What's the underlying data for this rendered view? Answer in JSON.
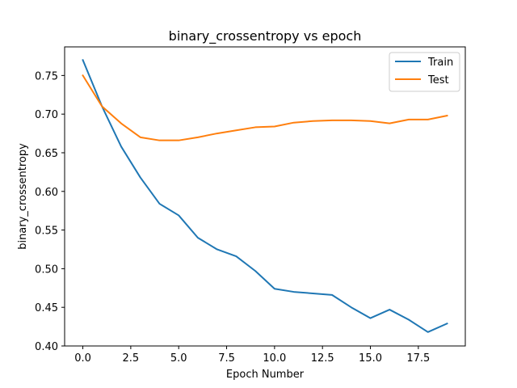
{
  "chart_data": {
    "type": "line",
    "title": "binary_crossentropy vs epoch",
    "xlabel": "Epoch Number",
    "ylabel": "binary_crossentropy",
    "xlim": [
      -0.95,
      19.95
    ],
    "ylim": [
      0.4,
      0.787
    ],
    "xticks": [
      0.0,
      2.5,
      5.0,
      7.5,
      10.0,
      12.5,
      15.0,
      17.5
    ],
    "xtick_labels": [
      "0.0",
      "2.5",
      "5.0",
      "7.5",
      "10.0",
      "12.5",
      "15.0",
      "17.5"
    ],
    "yticks": [
      0.4,
      0.45,
      0.5,
      0.55,
      0.6,
      0.65,
      0.7,
      0.75
    ],
    "ytick_labels": [
      "0.40",
      "0.45",
      "0.50",
      "0.55",
      "0.60",
      "0.65",
      "0.70",
      "0.75"
    ],
    "grid": false,
    "legend_position": "upper right",
    "x": [
      0,
      1,
      2,
      3,
      4,
      5,
      6,
      7,
      8,
      9,
      10,
      11,
      12,
      13,
      14,
      15,
      16,
      17,
      18,
      19
    ],
    "series": [
      {
        "name": "Train",
        "color": "#1f77b4",
        "values": [
          0.77,
          0.71,
          0.658,
          0.618,
          0.584,
          0.569,
          0.54,
          0.525,
          0.516,
          0.497,
          0.474,
          0.47,
          0.468,
          0.466,
          0.45,
          0.436,
          0.447,
          0.434,
          0.418,
          0.429
        ]
      },
      {
        "name": "Test",
        "color": "#ff7f0e",
        "values": [
          0.75,
          0.71,
          0.688,
          0.67,
          0.666,
          0.666,
          0.67,
          0.675,
          0.679,
          0.683,
          0.684,
          0.689,
          0.691,
          0.692,
          0.692,
          0.691,
          0.688,
          0.693,
          0.693,
          0.698
        ]
      }
    ]
  }
}
